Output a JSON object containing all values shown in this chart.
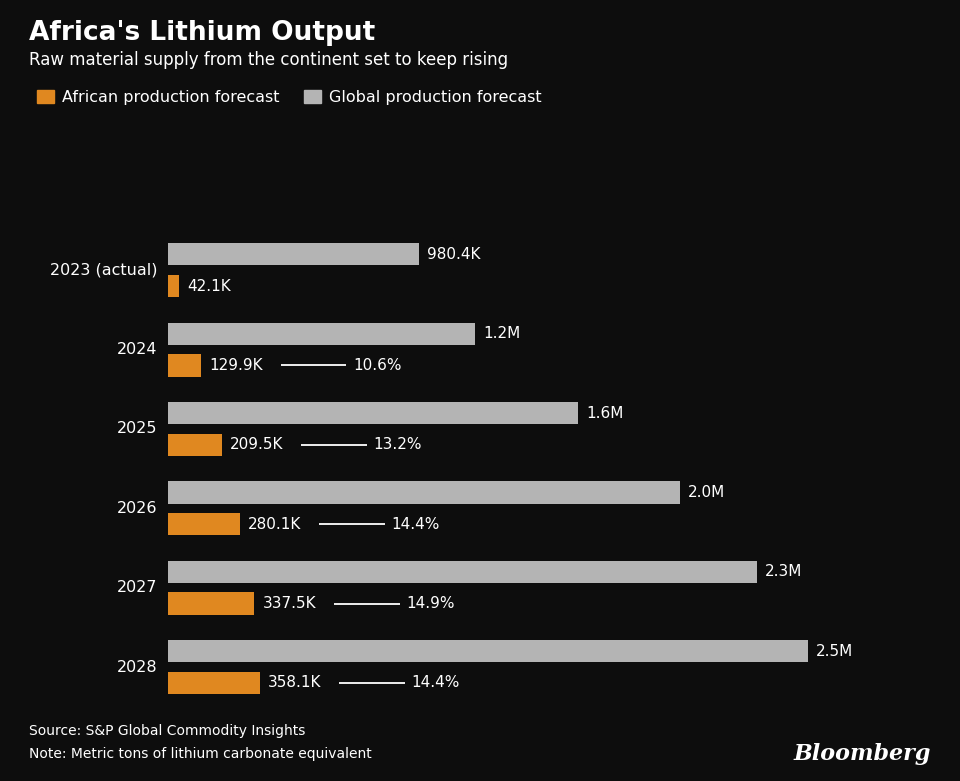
{
  "title": "Africa's Lithium Output",
  "subtitle": "Raw material supply from the continent set to keep rising",
  "legend": [
    "African production forecast",
    "Global production forecast"
  ],
  "source": "Source: S&P Global Commodity Insights",
  "note": "Note: Metric tons of lithium carbonate equivalent",
  "background_color": "#0d0d0d",
  "text_color": "#ffffff",
  "bar_color_african": "#e08820",
  "bar_color_global": "#b4b4b4",
  "years": [
    "2023 (actual)",
    "2024",
    "2025",
    "2026",
    "2027",
    "2028"
  ],
  "african_values": [
    42100,
    129900,
    209500,
    280100,
    337500,
    358100
  ],
  "global_values": [
    980400,
    1200000,
    1600000,
    2000000,
    2300000,
    2500000
  ],
  "african_labels": [
    "42.1K",
    "129.9K",
    "209.5K",
    "280.1K",
    "337.5K",
    "358.1K"
  ],
  "global_labels": [
    "980.4K",
    "1.2M",
    "1.6M",
    "2.0M",
    "2.3M",
    "2.5M"
  ],
  "pct_labels": [
    null,
    "10.6%",
    "13.2%",
    "14.4%",
    "14.9%",
    "14.4%"
  ],
  "xmax": 2700000,
  "bar_height": 0.28,
  "title_fontsize": 19,
  "subtitle_fontsize": 12,
  "label_fontsize": 11,
  "legend_fontsize": 11.5,
  "year_fontsize": 11.5,
  "footer_fontsize": 10,
  "bloomberg_fontsize": 16
}
